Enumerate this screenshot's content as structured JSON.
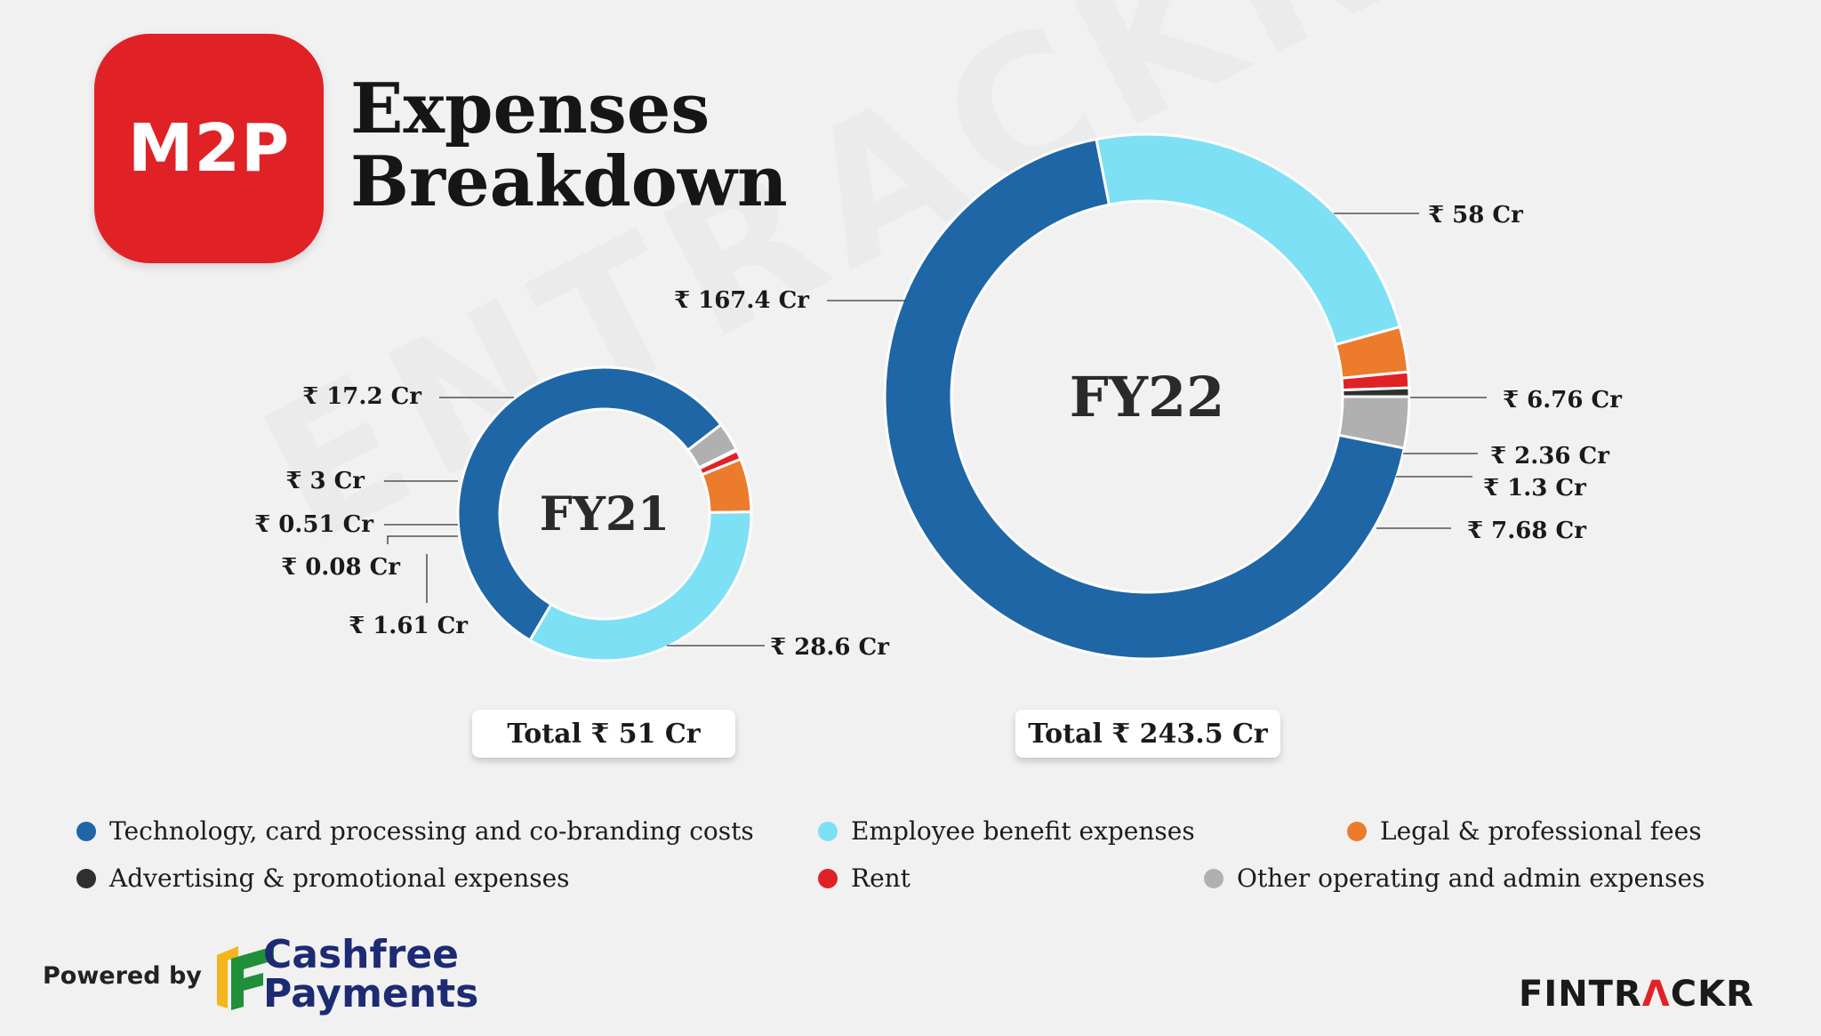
{
  "brand": {
    "logo_text": "M2P"
  },
  "title": {
    "line1": "Expenses",
    "line2": "Breakdown"
  },
  "colors": {
    "technology": "#1f66a6",
    "employee": "#7ee0f4",
    "legal": "#ec7b2c",
    "advertising": "#2f2f2f",
    "rent": "#e02226",
    "other": "#b0b0b0"
  },
  "chart_data": [
    {
      "type": "pie",
      "subtype": "donut",
      "title": "FY21",
      "total_label": "Total ₹ 51 Cr",
      "slices": [
        {
          "category": "Technology, card processing and co-branding costs",
          "value": 28.6,
          "label": "₹ 28.6 Cr"
        },
        {
          "category": "Other operating and admin expenses",
          "value": 1.61,
          "label": "₹ 1.61 Cr"
        },
        {
          "category": "Advertising & promotional expenses",
          "value": 0.08,
          "label": "₹ 0.08 Cr"
        },
        {
          "category": "Rent",
          "value": 0.51,
          "label": "₹ 0.51 Cr"
        },
        {
          "category": "Legal & professional fees",
          "value": 3,
          "label": "₹ 3 Cr"
        },
        {
          "category": "Employee benefit expenses",
          "value": 17.2,
          "label": "₹ 17.2 Cr"
        }
      ]
    },
    {
      "type": "pie",
      "subtype": "donut",
      "title": "FY22",
      "total_label": "Total ₹ 243.5 Cr",
      "slices": [
        {
          "category": "Employee benefit expenses",
          "value": 58,
          "label": "₹ 58 Cr"
        },
        {
          "category": "Legal & professional fees",
          "value": 6.76,
          "label": "₹ 6.76 Cr"
        },
        {
          "category": "Rent",
          "value": 2.36,
          "label": "₹ 2.36 Cr"
        },
        {
          "category": "Advertising & promotional expenses",
          "value": 1.3,
          "label": "₹ 1.3 Cr"
        },
        {
          "category": "Other operating and admin expenses",
          "value": 7.68,
          "label": "₹ 7.68 Cr"
        },
        {
          "category": "Technology, card processing and co-branding costs",
          "value": 167.4,
          "label": "₹ 167.4 Cr"
        }
      ]
    }
  ],
  "legend": [
    {
      "key": "technology",
      "label": "Technology, card processing and co-branding costs"
    },
    {
      "key": "employee",
      "label": "Employee benefit expenses"
    },
    {
      "key": "legal",
      "label": "Legal & professional fees"
    },
    {
      "key": "advertising",
      "label": "Advertising & promotional expenses"
    },
    {
      "key": "rent",
      "label": "Rent"
    },
    {
      "key": "other",
      "label": "Other operating and admin expenses"
    }
  ],
  "footer": {
    "powered_by": "Powered by",
    "sponsor_line1": "Cashfree",
    "sponsor_line2": "Payments",
    "brand_part1": "FINTR",
    "brand_part2": "Λ",
    "brand_part3": "CKR"
  },
  "watermark": "ENTRACKR"
}
